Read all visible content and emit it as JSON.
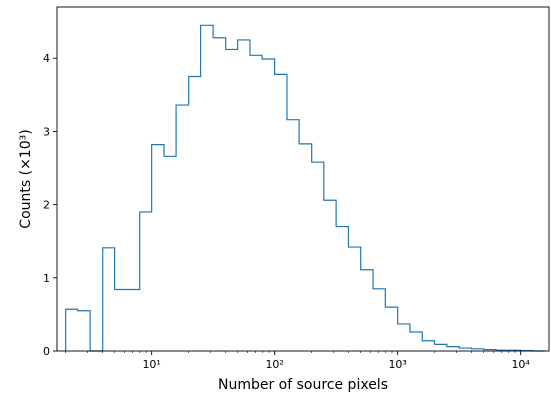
{
  "chart_data": {
    "type": "histogram",
    "title": "",
    "xlabel": "Number of source pixels",
    "ylabel": "Counts (×10³)",
    "x_scale": "log",
    "xlim": [
      1.7,
      17000
    ],
    "ylim": [
      0,
      4.7
    ],
    "grid": false,
    "legend": "none",
    "line_color": "#1f77b4",
    "y_ticks": [
      "0",
      "1",
      "2",
      "3",
      "4"
    ],
    "x_ticks": [
      {
        "value": 10,
        "label": "10¹"
      },
      {
        "value": 100,
        "label": "10²"
      },
      {
        "value": 1000,
        "label": "10³"
      },
      {
        "value": 10000,
        "label": "10⁴"
      }
    ],
    "bin_edges": [
      2,
      2.5,
      3.16,
      4,
      5,
      6.3,
      8,
      10,
      12.6,
      15.8,
      20,
      25,
      31.6,
      40,
      50,
      63,
      79,
      100,
      126,
      158,
      200,
      251,
      316,
      398,
      501,
      631,
      794,
      1000,
      1259,
      1585,
      1995,
      2512,
      3162,
      3981,
      5012,
      6310,
      7943,
      10000,
      12589,
      15849
    ],
    "counts": [
      0.57,
      0.55,
      0.0,
      1.41,
      0.84,
      0.84,
      1.9,
      2.82,
      2.66,
      3.36,
      3.75,
      4.45,
      4.28,
      4.12,
      4.25,
      4.04,
      3.99,
      3.78,
      3.16,
      2.83,
      2.58,
      2.06,
      1.7,
      1.42,
      1.11,
      0.85,
      0.6,
      0.37,
      0.26,
      0.14,
      0.09,
      0.06,
      0.04,
      0.03,
      0.02,
      0.01,
      0.01,
      0.005,
      0.0
    ]
  }
}
